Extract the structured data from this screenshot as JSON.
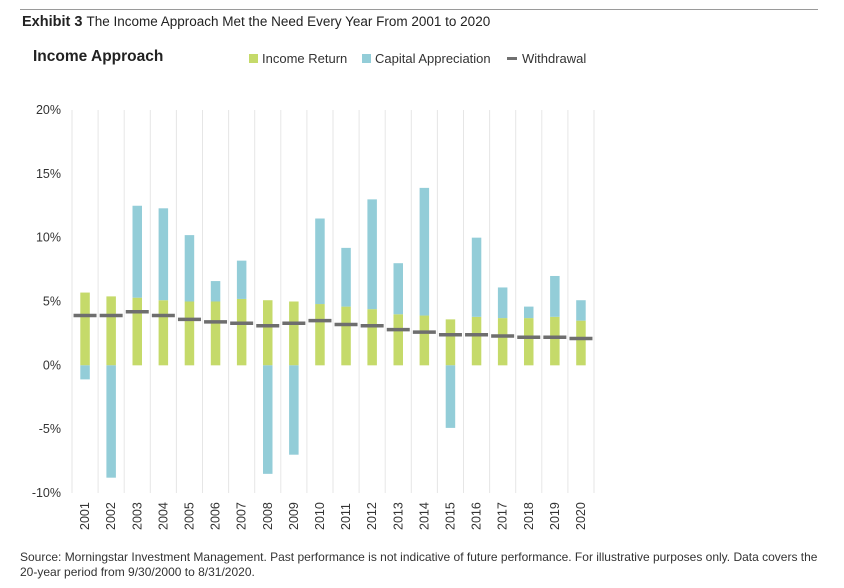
{
  "header": {
    "exhibit_label": "Exhibit 3",
    "exhibit_title": "The Income Approach Met the Need Every Year From 2001 to 2020"
  },
  "legend": {
    "income": "Income Return",
    "capital": "Capital Appreciation",
    "withdrawal": "Withdrawal"
  },
  "colors": {
    "income": "#c5da6a",
    "capital": "#93cdd8",
    "withdrawal": "#6e6e6e",
    "grid": "#e6e6e6"
  },
  "footer": {
    "source": "Source: Morningstar Investment Management. Past performance is not indicative of future performance. For illustrative purposes only. Data covers the 20-year period from 9/30/2000 to 8/31/2020."
  },
  "chart_data": {
    "type": "bar",
    "title": "Income Approach",
    "stacked": true,
    "categories": [
      "2001",
      "2002",
      "2003",
      "2004",
      "2005",
      "2006",
      "2007",
      "2008",
      "2009",
      "2010",
      "2011",
      "2012",
      "2013",
      "2014",
      "2015",
      "2016",
      "2017",
      "2018",
      "2019",
      "2020"
    ],
    "series": [
      {
        "name": "Income Return",
        "values": [
          5.7,
          5.4,
          5.3,
          5.1,
          5.0,
          5.0,
          5.2,
          5.1,
          5.0,
          4.8,
          4.6,
          4.4,
          4.0,
          3.9,
          3.6,
          3.8,
          3.7,
          3.7,
          3.8,
          3.5
        ]
      },
      {
        "name": "Capital Appreciation",
        "values": [
          -1.1,
          -8.8,
          7.2,
          7.2,
          5.2,
          1.6,
          3.0,
          -8.5,
          -7.0,
          6.7,
          4.6,
          8.6,
          4.0,
          10.0,
          -4.9,
          6.2,
          2.4,
          0.9,
          3.2,
          1.6
        ]
      },
      {
        "name": "Withdrawal",
        "values": [
          3.9,
          3.9,
          4.2,
          3.9,
          3.6,
          3.4,
          3.3,
          3.1,
          3.3,
          3.5,
          3.2,
          3.1,
          2.8,
          2.6,
          2.4,
          2.4,
          2.3,
          2.2,
          2.2,
          2.1
        ]
      }
    ],
    "ylim": [
      -10,
      20
    ],
    "yticks": [
      "-10%",
      "-5%",
      "0%",
      "5%",
      "10%",
      "15%",
      "20%"
    ],
    "xlabel": "",
    "ylabel": "",
    "grid": "vertical",
    "legend_position": "top"
  }
}
